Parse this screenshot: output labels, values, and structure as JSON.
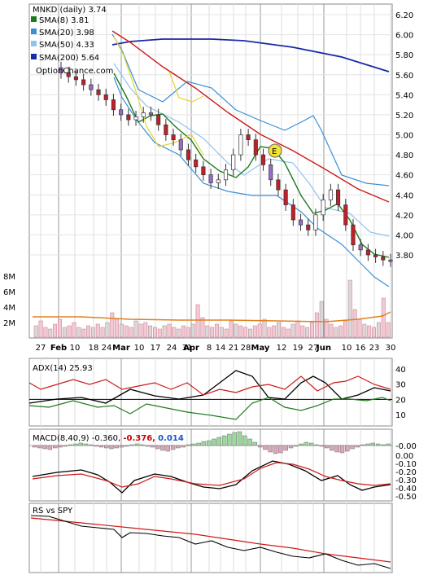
{
  "header": {
    "title": "MNKD (daily) 3.74",
    "watermark": "OptionChance.com",
    "legend": [
      {
        "label": "SMA(8) 3.81",
        "color": "#1f7a1f"
      },
      {
        "label": "SMA(20) 3.98",
        "color": "#3a8fd9"
      },
      {
        "label": "SMA(50) 4.33",
        "color": "#8fc4ee"
      },
      {
        "label": "SMA(200) 5.64",
        "color": "#1a2aa8"
      }
    ]
  },
  "x_axis": {
    "labels": [
      "27",
      "Feb",
      "10",
      "18",
      "24",
      "Mar",
      "10",
      "17",
      "24",
      "31",
      "Apr",
      "8",
      "14",
      "21",
      "28",
      "May",
      "12",
      "19",
      "27",
      "Jun",
      "10",
      "16",
      "23",
      "30"
    ],
    "bold_labels": [
      "Feb",
      "Mar",
      "Apr",
      "May",
      "Jun"
    ]
  },
  "price_panel": {
    "y_ticks": [
      "6.20",
      "6.00",
      "5.80",
      "5.60",
      "5.40",
      "5.20",
      "5.00",
      "4.80",
      "4.60",
      "4.40",
      "4.20",
      "4.00",
      "3.80"
    ],
    "volume_ticks": [
      "8M",
      "6M",
      "4M",
      "2M"
    ],
    "marker_label": "E"
  },
  "adx_panel": {
    "label": "ADX(14) 25.93",
    "y_ticks": [
      "40",
      "30",
      "20",
      "10"
    ]
  },
  "macd_panel": {
    "label": "MACD(8,40,9) -0.360,",
    "value_red": "-0.376,",
    "value_blue": "0.014",
    "y_ticks": [
      "0.00",
      "-0.10",
      "-0.20",
      "-0.30",
      "-0.40",
      "-0.50"
    ],
    "hist_ticks": [
      "-0.00"
    ]
  },
  "rs_panel": {
    "label": "RS vs SPY"
  },
  "chart_data": {
    "type": "line",
    "title": "MNKD (daily) 3.74",
    "series": [
      {
        "name": "SMA(8)",
        "last": 3.81
      },
      {
        "name": "SMA(20)",
        "last": 3.98
      },
      {
        "name": "SMA(50)",
        "last": 4.33
      },
      {
        "name": "SMA(200)",
        "last": 5.64
      }
    ],
    "close_approx": [
      5.62,
      5.58,
      5.55,
      5.5,
      5.45,
      5.4,
      5.35,
      5.25,
      5.2,
      5.15,
      5.18,
      5.22,
      5.2,
      5.1,
      5.0,
      4.95,
      4.85,
      4.75,
      4.68,
      4.6,
      4.52,
      4.55,
      4.65,
      4.8,
      5.0,
      4.95,
      4.8,
      4.7,
      4.55,
      4.45,
      4.3,
      4.15,
      4.1,
      4.05,
      4.2,
      4.35,
      4.45,
      4.3,
      4.1,
      3.9,
      3.85,
      3.8,
      3.78,
      3.75,
      3.74
    ],
    "ylim": [
      3.6,
      6.2
    ],
    "adx_ylim": [
      5,
      45
    ],
    "macd_ylim": [
      -0.55,
      0.05
    ]
  }
}
